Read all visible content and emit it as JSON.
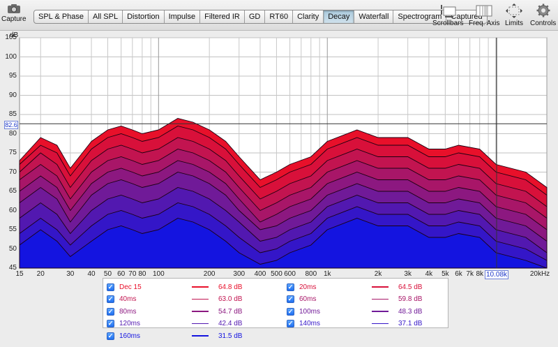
{
  "toolbar": {
    "capture_label": "Capture",
    "tabs": [
      {
        "label": "SPL & Phase",
        "active": false
      },
      {
        "label": "All SPL",
        "active": false
      },
      {
        "label": "Distortion",
        "active": false
      },
      {
        "label": "Impulse",
        "active": false
      },
      {
        "label": "Filtered IR",
        "active": false
      },
      {
        "label": "GD",
        "active": false
      },
      {
        "label": "RT60",
        "active": false
      },
      {
        "label": "Clarity",
        "active": false
      },
      {
        "label": "Decay",
        "active": true
      },
      {
        "label": "Waterfall",
        "active": false
      },
      {
        "label": "Spectrogram",
        "active": false
      },
      {
        "label": "Captured",
        "active": false
      }
    ],
    "right_tools": [
      {
        "label": "Scrollbars",
        "icon": "scrollbars-icon"
      },
      {
        "label": "Freq. Axis",
        "icon": "freq-axis-icon"
      },
      {
        "label": "Limits",
        "icon": "limits-icon"
      },
      {
        "label": "Controls",
        "icon": "controls-gear-icon"
      }
    ]
  },
  "plot": {
    "y_unit": "dB",
    "y_ticks": [
      "105",
      "100",
      "95",
      "90",
      "85",
      "80",
      "75",
      "70",
      "65",
      "60",
      "55",
      "50",
      "45"
    ],
    "x_ticks": [
      "15",
      "20",
      "30",
      "40",
      "50",
      "60",
      "70",
      "80",
      "100",
      "200",
      "300",
      "400",
      "500",
      "600",
      "800",
      "1k",
      "2k",
      "3k",
      "4k",
      "5k",
      "6k",
      "7k",
      "8k",
      "20kHz"
    ],
    "cursor_y_label": "82.6",
    "cursor_x_label": "10.08k",
    "colors": {
      "background": "#ffffff",
      "grid": "#b8b8b8",
      "cursor": "#333333"
    }
  },
  "chart_data": {
    "type": "area",
    "title": "",
    "xlabel": "",
    "ylabel": "dB",
    "x_scale": "log",
    "xlim": [
      15,
      20000
    ],
    "ylim": [
      45,
      105
    ],
    "x": [
      15,
      20,
      25,
      30,
      40,
      50,
      60,
      70,
      80,
      100,
      130,
      160,
      200,
      250,
      300,
      400,
      500,
      600,
      800,
      1000,
      1500,
      2000,
      3000,
      4000,
      5000,
      6000,
      8000,
      10000,
      15000,
      20000
    ],
    "series": [
      {
        "name": "Dec 15",
        "color": "#e8102a",
        "values": [
          73,
          79,
          77,
          71,
          78,
          81,
          82,
          81,
          80,
          81,
          84,
          83,
          81,
          78,
          74,
          68,
          70,
          72,
          74,
          78,
          81,
          79,
          79,
          76,
          76,
          77,
          76,
          72,
          70,
          66
        ]
      },
      {
        "name": "20ms",
        "color": "#d8103a",
        "values": [
          72,
          77,
          75,
          69,
          76,
          79,
          80,
          79,
          78,
          79,
          82,
          81,
          79,
          76,
          72,
          66,
          68,
          70,
          72,
          76,
          79,
          77,
          77,
          74,
          74,
          75,
          74,
          70,
          68,
          64
        ]
      },
      {
        "name": "40ms",
        "color": "#c21450",
        "values": [
          70,
          75,
          72,
          66,
          73,
          76,
          77,
          76,
          75,
          76,
          79,
          78,
          76,
          73,
          69,
          63,
          65,
          67,
          69,
          73,
          76,
          74,
          74,
          71,
          71,
          72,
          71,
          67,
          65,
          61
        ]
      },
      {
        "name": "60ms",
        "color": "#a81668",
        "values": [
          68,
          72,
          69,
          63,
          70,
          73,
          74,
          73,
          72,
          73,
          76,
          75,
          73,
          70,
          66,
          60,
          62,
          64,
          66,
          70,
          73,
          71,
          71,
          68,
          68,
          69,
          68,
          64,
          62,
          58
        ]
      },
      {
        "name": "80ms",
        "color": "#8c1880",
        "values": [
          65,
          69,
          66,
          60,
          67,
          70,
          71,
          70,
          69,
          70,
          73,
          72,
          70,
          67,
          63,
          57,
          59,
          61,
          63,
          67,
          70,
          68,
          68,
          65,
          65,
          66,
          65,
          61,
          59,
          55
        ]
      },
      {
        "name": "100ms",
        "color": "#701a98",
        "values": [
          62,
          66,
          63,
          57,
          64,
          67,
          68,
          67,
          66,
          67,
          70,
          69,
          67,
          64,
          60,
          55,
          56,
          58,
          60,
          64,
          67,
          65,
          65,
          62,
          62,
          63,
          62,
          58,
          56,
          52
        ]
      },
      {
        "name": "120ms",
        "color": "#5218b0",
        "values": [
          58,
          62,
          59,
          54,
          60,
          63,
          64,
          63,
          62,
          63,
          66,
          65,
          63,
          60,
          57,
          52,
          53,
          55,
          57,
          61,
          64,
          62,
          62,
          59,
          59,
          60,
          59,
          55,
          53,
          49
        ]
      },
      {
        "name": "140ms",
        "color": "#3416c8",
        "values": [
          54,
          58,
          55,
          51,
          56,
          59,
          60,
          59,
          58,
          59,
          62,
          61,
          59,
          56,
          53,
          49,
          50,
          52,
          54,
          58,
          61,
          59,
          59,
          56,
          56,
          57,
          56,
          52,
          50,
          47
        ]
      },
      {
        "name": "160ms",
        "color": "#1414e0",
        "values": [
          51,
          55,
          52,
          48,
          52,
          55,
          56,
          55,
          54,
          55,
          58,
          57,
          55,
          52,
          49,
          46,
          47,
          49,
          51,
          55,
          58,
          56,
          56,
          53,
          53,
          54,
          53,
          49,
          47,
          45
        ]
      }
    ]
  },
  "legend": {
    "items": [
      {
        "name": "Dec 15",
        "value": "64.8 dB",
        "color": "#e8102a",
        "checked": "✓"
      },
      {
        "name": "20ms",
        "value": "64.5 dB",
        "color": "#d8103a",
        "checked": "✓"
      },
      {
        "name": "40ms",
        "value": "63.0 dB",
        "color": "#c21450",
        "checked": "✓"
      },
      {
        "name": "60ms",
        "value": "59.8 dB",
        "color": "#a81668",
        "checked": "✓"
      },
      {
        "name": "80ms",
        "value": "54.7 dB",
        "color": "#8c1880",
        "checked": "✓"
      },
      {
        "name": "100ms",
        "value": "48.3 dB",
        "color": "#701a98",
        "checked": "✓"
      },
      {
        "name": "120ms",
        "value": "42.4 dB",
        "color": "#5218b0",
        "checked": "✓"
      },
      {
        "name": "140ms",
        "value": "37.1 dB",
        "color": "#3416c8",
        "checked": "✓"
      },
      {
        "name": "160ms",
        "value": "31.5 dB",
        "color": "#1414e0",
        "checked": "✓"
      }
    ]
  }
}
